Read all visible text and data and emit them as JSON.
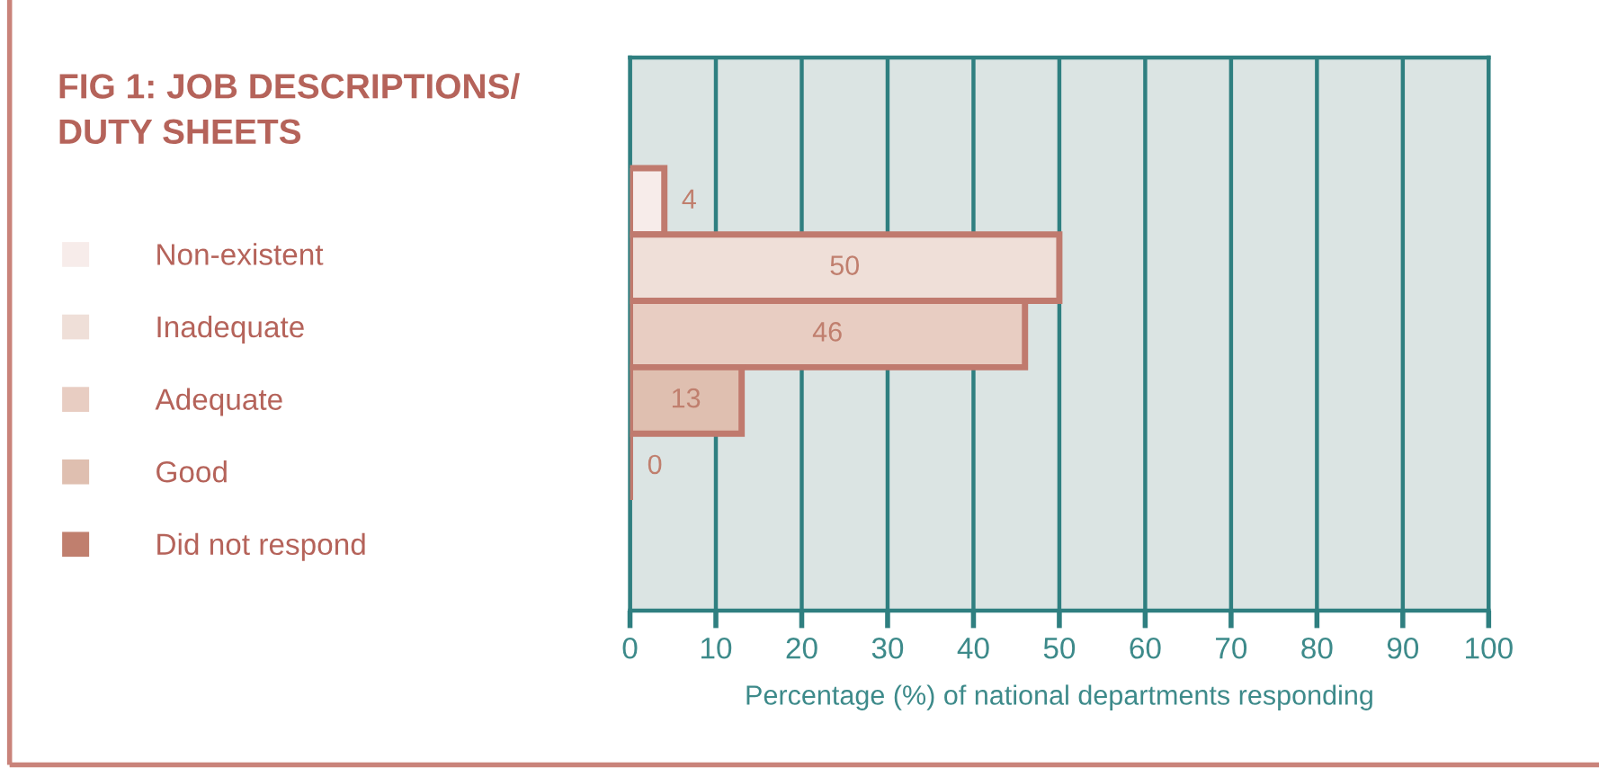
{
  "chart_data": {
    "type": "bar",
    "orientation": "horizontal",
    "title": "FIG 1: JOB DESCRIPTIONS/\nDUTY SHEETS",
    "xlabel": "Percentage (%) of national departments responding",
    "categories": [
      null
    ],
    "series": [
      {
        "name": "Non-existent",
        "color": "#f7ecea",
        "values": [
          4
        ]
      },
      {
        "name": "Inadequate",
        "color": "#efdfd8",
        "values": [
          50
        ]
      },
      {
        "name": "Adequate",
        "color": "#e8cdc2",
        "values": [
          46
        ]
      },
      {
        "name": "Good",
        "color": "#dfbfb0",
        "values": [
          13
        ]
      },
      {
        "name": "Did not respond",
        "color": "#c07f6e",
        "values": [
          0
        ]
      }
    ],
    "xlim": [
      0,
      100
    ],
    "xticks": [
      0,
      10,
      20,
      30,
      40,
      50,
      60,
      70,
      80,
      90,
      100
    ],
    "grid": "x",
    "legend": "left",
    "data_labels": true,
    "tick_labels": "x"
  }
}
